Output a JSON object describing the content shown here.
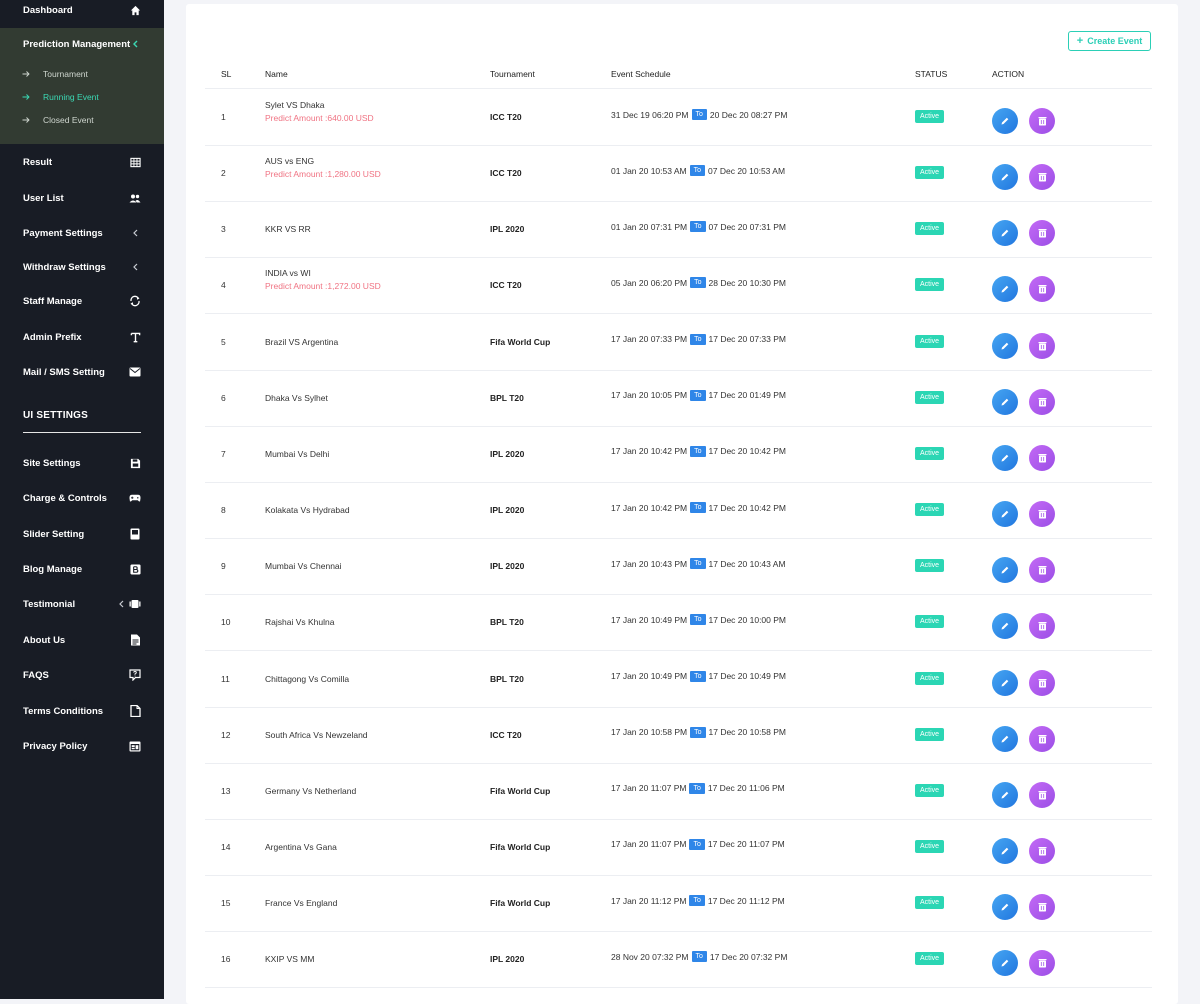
{
  "sidebar": {
    "items": [
      {
        "label": "Dashboard",
        "icon": "home-icon"
      },
      {
        "label": "Prediction Management",
        "icon": "chevron-down-icon"
      },
      {
        "label": "Result",
        "icon": "table-icon"
      },
      {
        "label": "User List",
        "icon": "users-icon"
      },
      {
        "label": "Payment Settings",
        "icon": "chevron-left-icon"
      },
      {
        "label": "Withdraw Settings",
        "icon": "chevron-left-icon"
      },
      {
        "label": "Staff Manage",
        "icon": "sync-icon"
      },
      {
        "label": "Admin Prefix",
        "icon": "text-icon"
      },
      {
        "label": "Mail / SMS Setting",
        "icon": "mail-icon"
      },
      {
        "label": "Site Settings",
        "icon": "save-icon"
      },
      {
        "label": "Charge & Controls",
        "icon": "gamepad-icon"
      },
      {
        "label": "Slider Setting",
        "icon": "image-icon"
      },
      {
        "label": "Blog Manage",
        "icon": "blog-icon"
      },
      {
        "label": "Testimonial",
        "icon": "video-icon"
      },
      {
        "label": "About Us",
        "icon": "file-text-icon"
      },
      {
        "label": "FAQS",
        "icon": "question-icon"
      },
      {
        "label": "Terms Conditions",
        "icon": "file-icon"
      },
      {
        "label": "Privacy Policy",
        "icon": "window-icon"
      }
    ],
    "sub_items": [
      {
        "label": "Tournament",
        "active": false
      },
      {
        "label": "Running Event",
        "active": true
      },
      {
        "label": "Closed Event",
        "active": false
      }
    ],
    "section_title": "UI SETTINGS"
  },
  "toolbar": {
    "create_label": "Create Event",
    "create_icon": "plus-icon"
  },
  "table": {
    "headers": [
      "SL",
      "Name",
      "Tournament",
      "Event Schedule",
      "STATUS",
      "ACTION"
    ],
    "to_label": "To",
    "rows": [
      {
        "sl": "1",
        "name": "Sylet VS Dhaka",
        "predict": "Predict Amount :640.00 USD",
        "tournament": "ICC T20",
        "start": "31 Dec 19 06:20 PM",
        "end": "20 Dec 20 08:27 PM",
        "status": "Active"
      },
      {
        "sl": "2",
        "name": "AUS vs ENG",
        "predict": "Predict Amount :1,280.00 USD",
        "tournament": "ICC T20",
        "start": "01 Jan 20 10:53 AM",
        "end": "07 Dec 20 10:53 AM",
        "status": "Active"
      },
      {
        "sl": "3",
        "name": "KKR VS RR",
        "predict": "",
        "tournament": "IPL 2020",
        "start": "01 Jan 20 07:31 PM",
        "end": "07 Dec 20 07:31 PM",
        "status": "Active"
      },
      {
        "sl": "4",
        "name": "INDIA vs WI",
        "predict": "Predict Amount :1,272.00 USD",
        "tournament": "ICC T20",
        "start": "05 Jan 20 06:20 PM",
        "end": "28 Dec 20 10:30 PM",
        "status": "Active"
      },
      {
        "sl": "5",
        "name": "Brazil VS Argentina",
        "predict": "",
        "tournament": "Fifa World Cup",
        "start": "17 Jan 20 07:33 PM",
        "end": "17 Dec 20 07:33 PM",
        "status": "Active"
      },
      {
        "sl": "6",
        "name": "Dhaka Vs Sylhet",
        "predict": "",
        "tournament": "BPL T20",
        "start": "17 Jan 20 10:05 PM",
        "end": "17 Dec 20 01:49 PM",
        "status": "Active"
      },
      {
        "sl": "7",
        "name": "Mumbai Vs Delhi",
        "predict": "",
        "tournament": "IPL 2020",
        "start": "17 Jan 20 10:42 PM",
        "end": "17 Dec 20 10:42 PM",
        "status": "Active"
      },
      {
        "sl": "8",
        "name": "Kolakata Vs Hydrabad",
        "predict": "",
        "tournament": "IPL 2020",
        "start": "17 Jan 20 10:42 PM",
        "end": "17 Dec 20 10:42 PM",
        "status": "Active"
      },
      {
        "sl": "9",
        "name": "Mumbai Vs Chennai",
        "predict": "",
        "tournament": "IPL 2020",
        "start": "17 Jan 20 10:43 PM",
        "end": "17 Dec 20 10:43 AM",
        "status": "Active"
      },
      {
        "sl": "10",
        "name": "Rajshai Vs Khulna",
        "predict": "",
        "tournament": "BPL T20",
        "start": "17 Jan 20 10:49 PM",
        "end": "17 Dec 20 10:00 PM",
        "status": "Active"
      },
      {
        "sl": "11",
        "name": "Chittagong Vs Comilla",
        "predict": "",
        "tournament": "BPL T20",
        "start": "17 Jan 20 10:49 PM",
        "end": "17 Dec 20 10:49 PM",
        "status": "Active"
      },
      {
        "sl": "12",
        "name": "South Africa Vs Newzeland",
        "predict": "",
        "tournament": "ICC T20",
        "start": "17 Jan 20 10:58 PM",
        "end": "17 Dec 20 10:58 PM",
        "status": "Active"
      },
      {
        "sl": "13",
        "name": "Germany Vs Netherland",
        "predict": "",
        "tournament": "Fifa World Cup",
        "start": "17 Jan 20 11:07 PM",
        "end": "17 Dec 20 11:06 PM",
        "status": "Active"
      },
      {
        "sl": "14",
        "name": "Argentina Vs Gana",
        "predict": "",
        "tournament": "Fifa World Cup",
        "start": "17 Jan 20 11:07 PM",
        "end": "17 Dec 20 11:07 PM",
        "status": "Active"
      },
      {
        "sl": "15",
        "name": "France Vs England",
        "predict": "",
        "tournament": "Fifa World Cup",
        "start": "17 Jan 20 11:12 PM",
        "end": "17 Dec 20 11:12 PM",
        "status": "Active"
      },
      {
        "sl": "16",
        "name": "KXIP VS MM",
        "predict": "",
        "tournament": "IPL 2020",
        "start": "28 Nov 20 07:32 PM",
        "end": "17 Dec 20 07:32 PM",
        "status": "Active"
      }
    ]
  },
  "colors": {
    "sidebar_bg": "#181c25",
    "active_group_bg": "#323b32",
    "accent": "#2bcfb6",
    "predict_text": "#f07383",
    "to_badge": "#2f86e8"
  }
}
